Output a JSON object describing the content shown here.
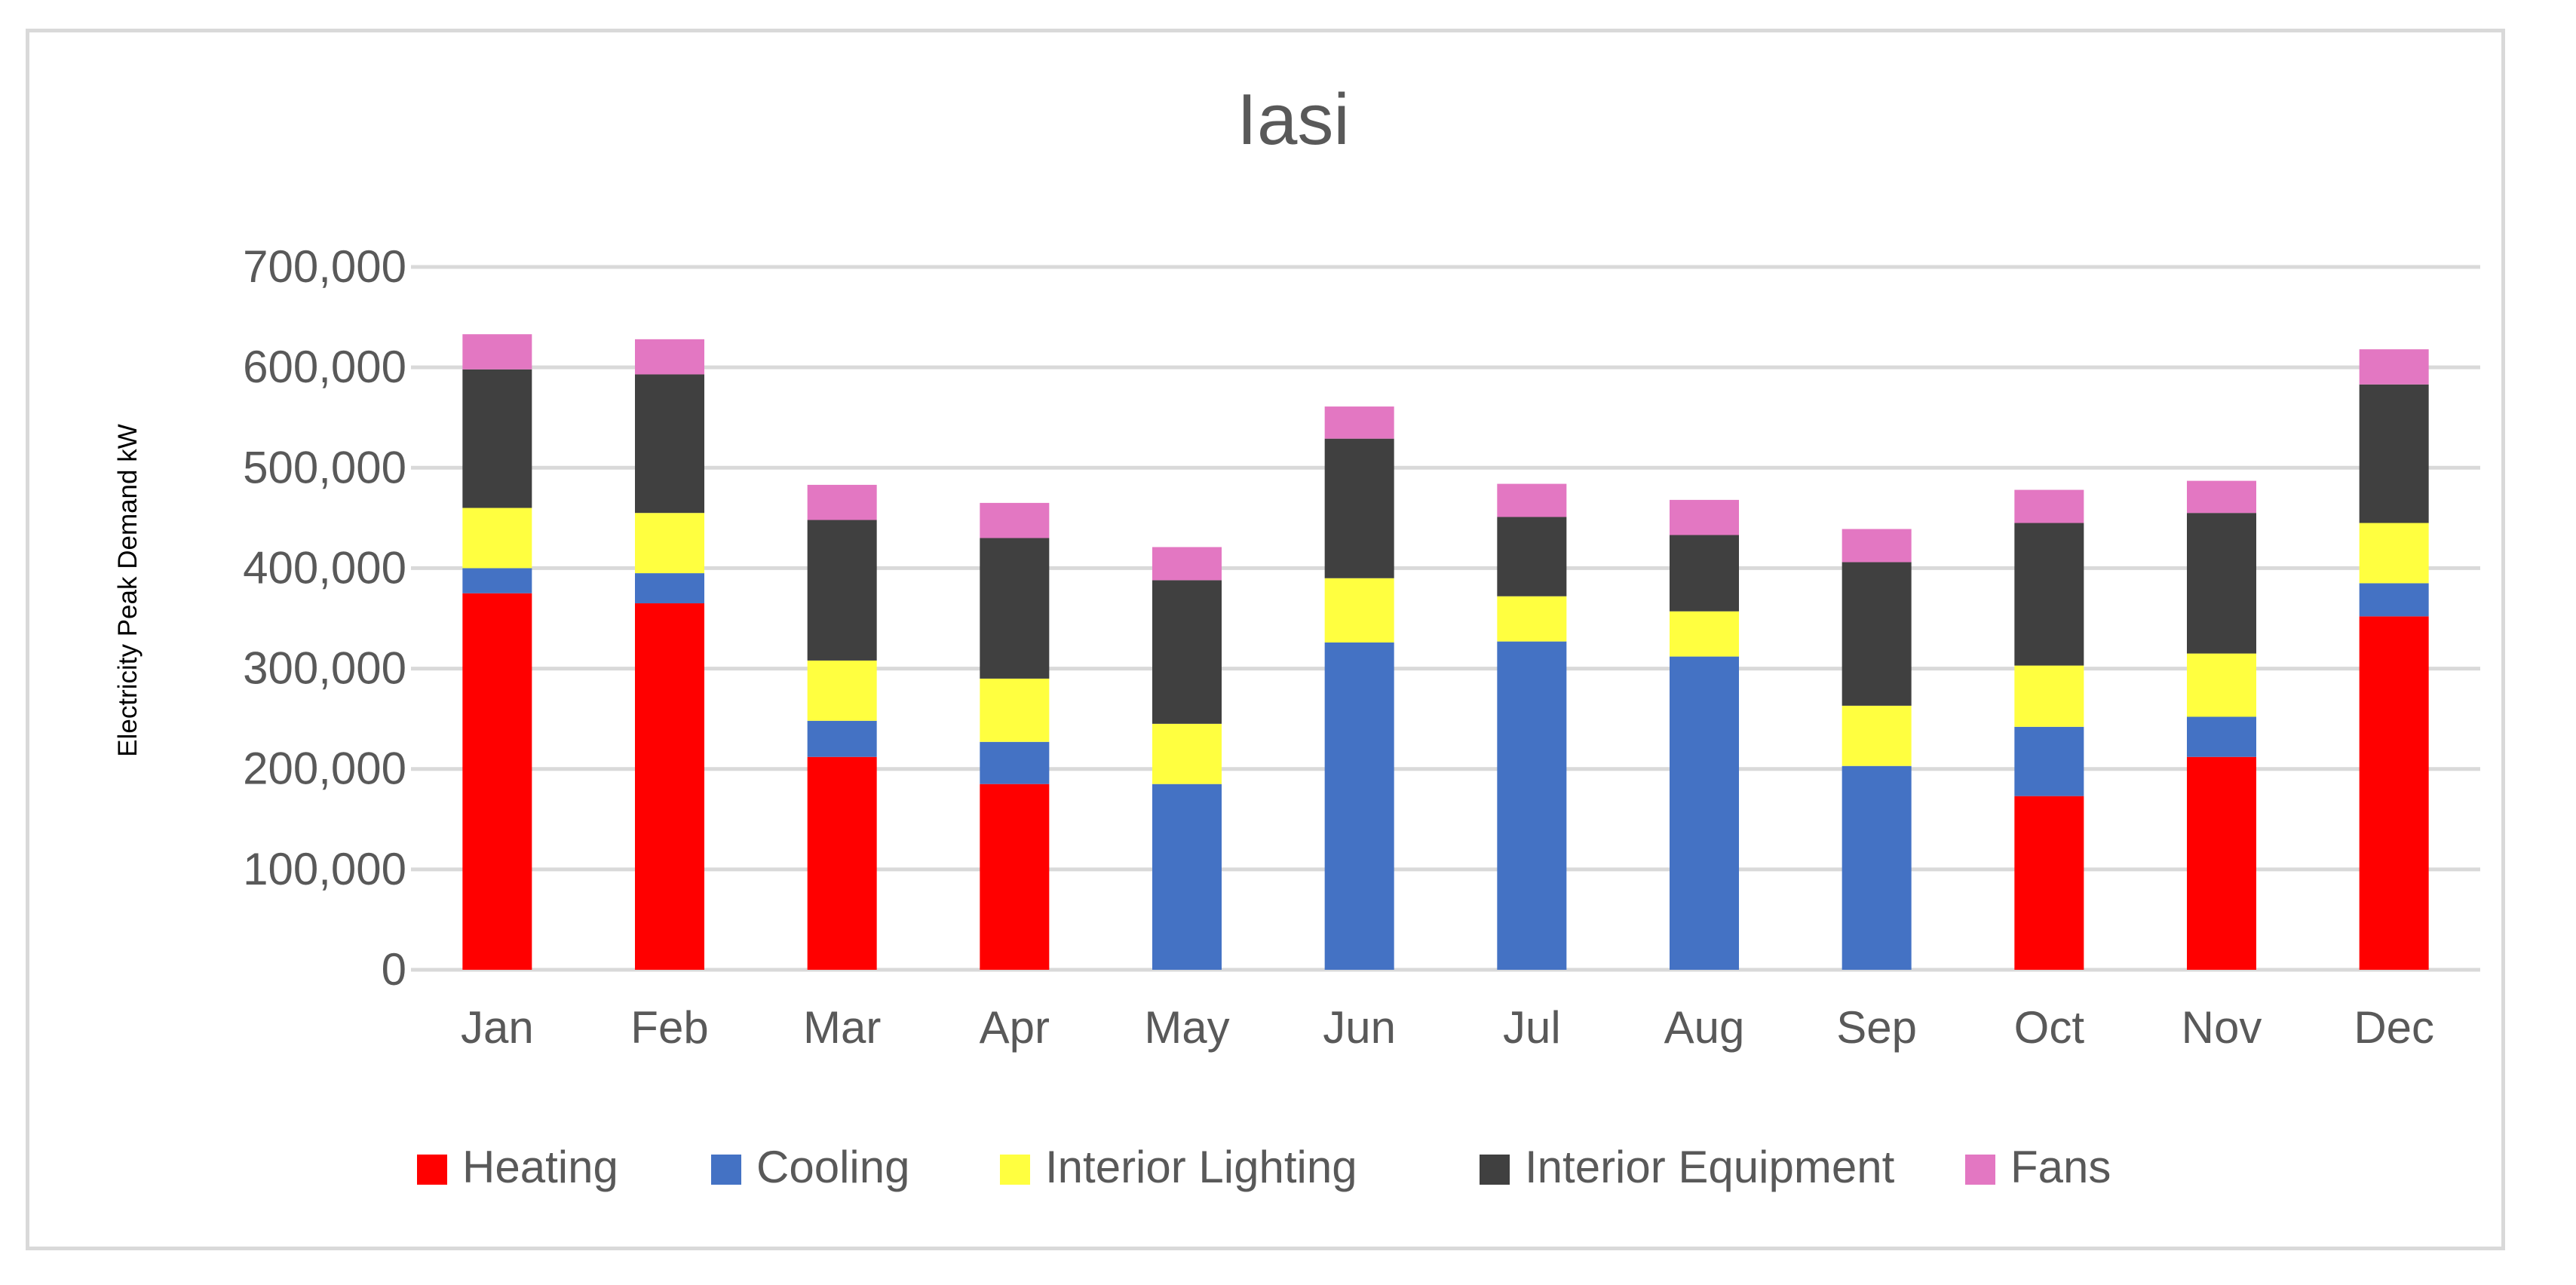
{
  "chart_data": {
    "type": "bar",
    "stacked": true,
    "title": "Iasi",
    "xlabel": "",
    "ylabel": "Electricity Peak Demand kW",
    "ylim": [
      0,
      700000
    ],
    "yticks": [
      0,
      100000,
      200000,
      300000,
      400000,
      500000,
      600000,
      700000
    ],
    "ytick_labels": [
      "0",
      "100,000",
      "200,000",
      "300,000",
      "400,000",
      "500,000",
      "600,000",
      "700,000"
    ],
    "grid": "horizontal",
    "legend_position": "bottom",
    "categories": [
      "Jan",
      "Feb",
      "Mar",
      "Apr",
      "May",
      "Jun",
      "Jul",
      "Aug",
      "Sep",
      "Oct",
      "Nov",
      "Dec"
    ],
    "series": [
      {
        "name": "Heating",
        "color": "#ff0000",
        "values": [
          375000,
          365000,
          212000,
          185000,
          0,
          0,
          0,
          0,
          0,
          173000,
          212000,
          352000
        ]
      },
      {
        "name": "Cooling",
        "color": "#4472c4",
        "values": [
          25000,
          30000,
          36000,
          42000,
          185000,
          326000,
          327000,
          312000,
          203000,
          69000,
          40000,
          33000
        ]
      },
      {
        "name": "Interior Lighting",
        "color": "#ffff40",
        "values": [
          60000,
          60000,
          60000,
          63000,
          60000,
          64000,
          45000,
          45000,
          60000,
          61000,
          63000,
          60000
        ]
      },
      {
        "name": "Interior Equipment",
        "color": "#404040",
        "values": [
          138000,
          138000,
          140000,
          140000,
          143000,
          139000,
          79000,
          76000,
          143000,
          142000,
          140000,
          138000
        ]
      },
      {
        "name": "Fans",
        "color": "#e377c2",
        "values": [
          35000,
          35000,
          35000,
          35000,
          33000,
          32000,
          33000,
          35000,
          33000,
          33000,
          32000,
          35000
        ]
      }
    ]
  }
}
